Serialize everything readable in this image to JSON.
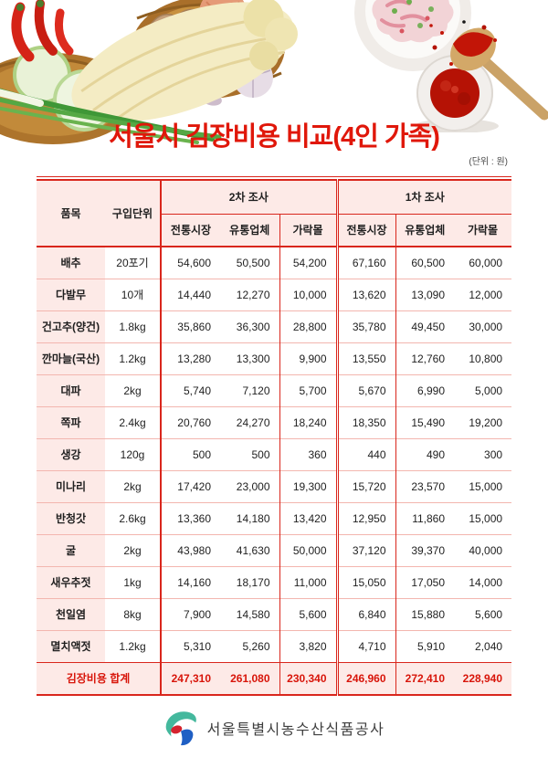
{
  "page": {
    "title": "서울시 김장비용 비교(4인 가족)",
    "unit_note": "(단위 : 원)",
    "footer_org": "서울특별시농수산식품공사"
  },
  "colors": {
    "title_red": "#e0170a",
    "border_red": "#d9261c",
    "header_bg": "#fdeae7",
    "row_line": "#f3b6af",
    "total_red": "#d8150a"
  },
  "decorations": {
    "left_illustration": "vegetable-baskets (napa cabbage, chili peppers, radish slices, green onions, ginger, onions, garlic)",
    "right_illustration": "kimchi bowl, wooden spoon with chili powder, chili powder mortar",
    "logo": "seoul-agro-fisheries-logo"
  },
  "table": {
    "col_item": "품목",
    "col_unit": "구입단위",
    "groups": [
      {
        "label": "2차 조사",
        "columns": [
          "전통시장",
          "유통업체",
          "가락몰"
        ]
      },
      {
        "label": "1차 조사",
        "columns": [
          "전통시장",
          "유통업체",
          "가락몰"
        ]
      }
    ],
    "rows": [
      {
        "item": "배추",
        "unit": "20포기",
        "values": [
          "54,600",
          "50,500",
          "54,200",
          "67,160",
          "60,500",
          "60,000"
        ]
      },
      {
        "item": "다발무",
        "unit": "10개",
        "values": [
          "14,440",
          "12,270",
          "10,000",
          "13,620",
          "13,090",
          "12,000"
        ]
      },
      {
        "item": "건고추(양건)",
        "unit": "1.8kg",
        "values": [
          "35,860",
          "36,300",
          "28,800",
          "35,780",
          "49,450",
          "30,000"
        ]
      },
      {
        "item": "깐마늘(국산)",
        "unit": "1.2kg",
        "values": [
          "13,280",
          "13,300",
          "9,900",
          "13,550",
          "12,760",
          "10,800"
        ]
      },
      {
        "item": "대파",
        "unit": "2kg",
        "values": [
          "5,740",
          "7,120",
          "5,700",
          "5,670",
          "6,990",
          "5,000"
        ]
      },
      {
        "item": "쪽파",
        "unit": "2.4kg",
        "values": [
          "20,760",
          "24,270",
          "18,240",
          "18,350",
          "15,490",
          "19,200"
        ]
      },
      {
        "item": "생강",
        "unit": "120g",
        "values": [
          "500",
          "500",
          "360",
          "440",
          "490",
          "300"
        ]
      },
      {
        "item": "미나리",
        "unit": "2kg",
        "values": [
          "17,420",
          "23,000",
          "19,300",
          "15,720",
          "23,570",
          "15,000"
        ]
      },
      {
        "item": "반청갓",
        "unit": "2.6kg",
        "values": [
          "13,360",
          "14,180",
          "13,420",
          "12,950",
          "11,860",
          "15,000"
        ]
      },
      {
        "item": "굴",
        "unit": "2kg",
        "values": [
          "43,980",
          "41,630",
          "50,000",
          "37,120",
          "39,370",
          "40,000"
        ]
      },
      {
        "item": "새우추젓",
        "unit": "1kg",
        "values": [
          "14,160",
          "18,170",
          "11,000",
          "15,050",
          "17,050",
          "14,000"
        ]
      },
      {
        "item": "천일염",
        "unit": "8kg",
        "values": [
          "7,900",
          "14,580",
          "5,600",
          "6,840",
          "15,880",
          "5,600"
        ]
      },
      {
        "item": "멸치액젓",
        "unit": "1.2kg",
        "values": [
          "5,310",
          "5,260",
          "3,820",
          "4,710",
          "5,910",
          "2,040"
        ]
      }
    ],
    "total": {
      "label": "김장비용 합계",
      "values": [
        "247,310",
        "261,080",
        "230,340",
        "246,960",
        "272,410",
        "228,940"
      ]
    }
  }
}
